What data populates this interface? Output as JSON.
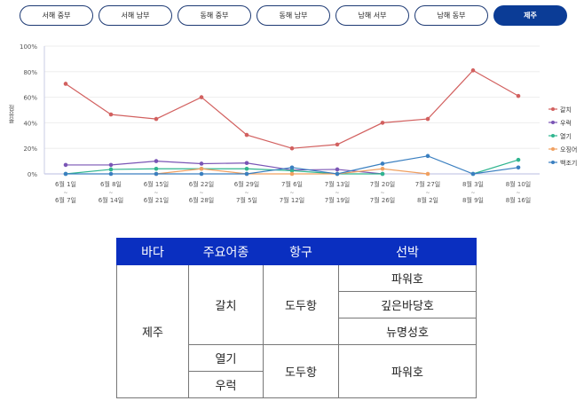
{
  "tabs": [
    "서해 중부",
    "서해 남부",
    "동해 중부",
    "동해 남부",
    "남해 서부",
    "남해 동부",
    "제주"
  ],
  "active_tab": "제주",
  "chart_data": {
    "type": "line",
    "ylabel": "점유율",
    "ylim": [
      0,
      100
    ],
    "yticks": [
      "0%",
      "20%",
      "40%",
      "60%",
      "80%",
      "100%"
    ],
    "categories": [
      [
        "6월 1일",
        "6월 7일"
      ],
      [
        "6월 8일",
        "6월 14일"
      ],
      [
        "6월 15일",
        "6월 21일"
      ],
      [
        "6월 22일",
        "6월 28일"
      ],
      [
        "6월 29일",
        "7월 5일"
      ],
      [
        "7월 6일",
        "7월 12일"
      ],
      [
        "7월 13일",
        "7월 19일"
      ],
      [
        "7월 20일",
        "7월 26일"
      ],
      [
        "7월 27일",
        "8월 2일"
      ],
      [
        "8월 3일",
        "8월 9일"
      ],
      [
        "8월 10일",
        "8월 16일"
      ]
    ],
    "series": [
      {
        "name": "갈치",
        "color": "#d2605f",
        "values": [
          70.5,
          46.5,
          43,
          60,
          30.5,
          20,
          23,
          40,
          43,
          81,
          61
        ]
      },
      {
        "name": "우럭",
        "color": "#7a55b5",
        "values": [
          7,
          7,
          10,
          8,
          8.5,
          3,
          3.5,
          0,
          null,
          null,
          null
        ]
      },
      {
        "name": "열기",
        "color": "#2fb58f",
        "values": [
          0,
          3.5,
          4,
          4,
          4,
          2.5,
          0,
          0,
          null,
          0,
          11
        ]
      },
      {
        "name": "오징어",
        "color": "#f0a060",
        "values": [
          null,
          null,
          0,
          4,
          0,
          0,
          0,
          4,
          0,
          null,
          null
        ]
      },
      {
        "name": "백조기",
        "color": "#3a7fc0",
        "values": [
          0,
          0,
          0,
          0,
          0,
          5,
          0,
          8,
          14,
          0,
          5
        ]
      }
    ],
    "legend": "right"
  },
  "table": {
    "headers": [
      "바다",
      "주요어종",
      "항구",
      "선박"
    ],
    "sea": "제주",
    "species1": "갈치",
    "port1": "도두항",
    "boats1": [
      "파워호",
      "깊은바당호",
      "뉴명성호"
    ],
    "species2": "열기",
    "species3": "우럭",
    "port2": "도두항",
    "boat2": "파워호"
  }
}
